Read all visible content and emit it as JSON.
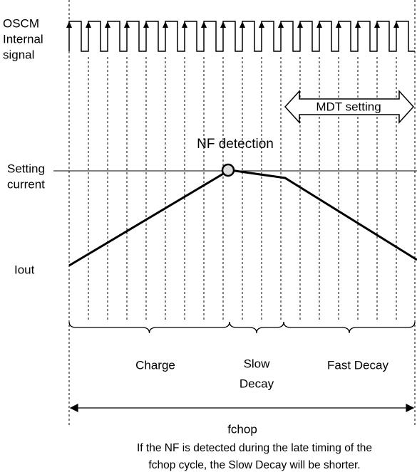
{
  "signal_label": [
    "OSCM",
    "Internal",
    "signal"
  ],
  "mdt_label": "MDT setting",
  "nf_label": "NF detection",
  "current_label": [
    "Setting",
    "current"
  ],
  "iout_label": "Iout",
  "phases": {
    "charge": "Charge",
    "slow": [
      "Slow",
      "Decay"
    ],
    "fast": "Fast Decay"
  },
  "period_label": "fchop",
  "caption": [
    "If  the NF is detected during the late timing of the",
    "fchop cycle, the Slow Decay will be shorter."
  ]
}
